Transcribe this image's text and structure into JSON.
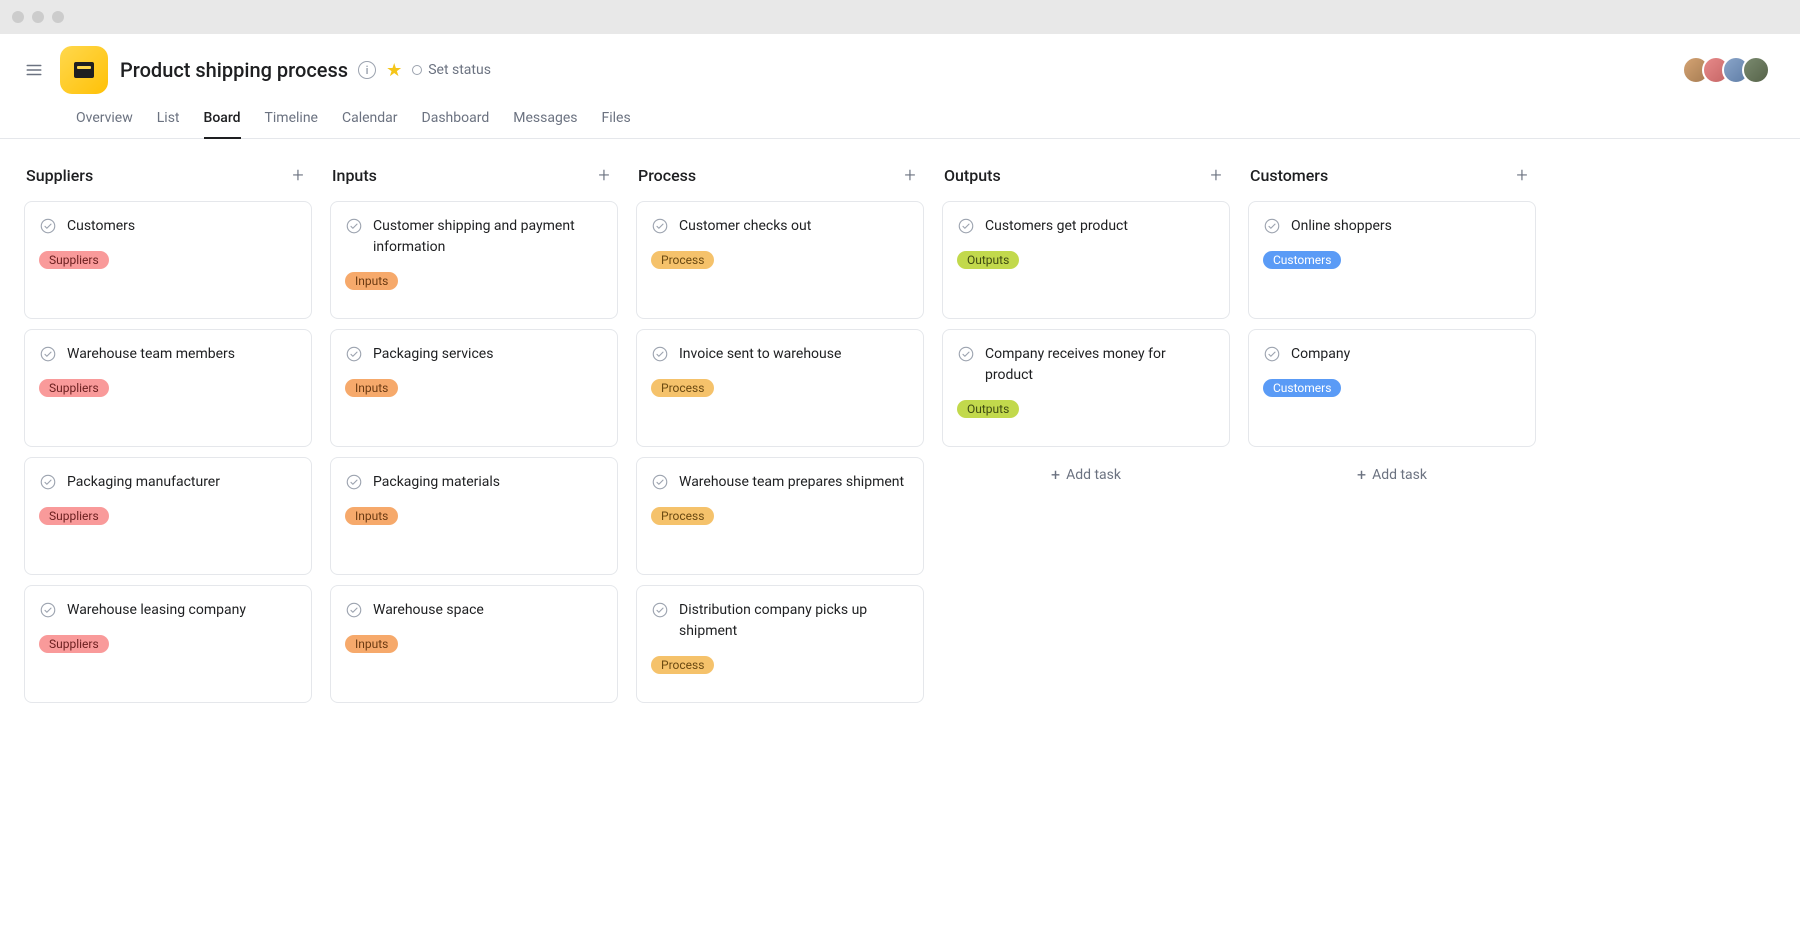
{
  "project": {
    "title": "Product shipping process",
    "status_label": "Set status"
  },
  "tabs": [
    {
      "label": "Overview"
    },
    {
      "label": "List"
    },
    {
      "label": "Board"
    },
    {
      "label": "Timeline"
    },
    {
      "label": "Calendar"
    },
    {
      "label": "Dashboard"
    },
    {
      "label": "Messages"
    },
    {
      "label": "Files"
    }
  ],
  "active_tab": "Board",
  "add_task_label": "Add task",
  "tag_colors": {
    "Suppliers": "#f99a9a",
    "Inputs": "#f6a96b",
    "Process": "#f5c26b",
    "Outputs": "#c2d94c",
    "Customers": "#5a9bf6"
  },
  "columns": [
    {
      "title": "Suppliers",
      "cards": [
        {
          "title": "Customers",
          "tag": "Suppliers"
        },
        {
          "title": "Warehouse team members",
          "tag": "Suppliers"
        },
        {
          "title": "Packaging manufacturer",
          "tag": "Suppliers"
        },
        {
          "title": "Warehouse leasing company",
          "tag": "Suppliers"
        }
      ]
    },
    {
      "title": "Inputs",
      "cards": [
        {
          "title": "Customer shipping and payment information",
          "tag": "Inputs"
        },
        {
          "title": "Packaging services",
          "tag": "Inputs"
        },
        {
          "title": "Packaging materials",
          "tag": "Inputs"
        },
        {
          "title": "Warehouse space",
          "tag": "Inputs"
        }
      ]
    },
    {
      "title": "Process",
      "cards": [
        {
          "title": "Customer checks out",
          "tag": "Process"
        },
        {
          "title": "Invoice sent to warehouse",
          "tag": "Process"
        },
        {
          "title": "Warehouse team prepares shipment",
          "tag": "Process"
        },
        {
          "title": "Distribution company picks up shipment",
          "tag": "Process"
        }
      ]
    },
    {
      "title": "Outputs",
      "cards": [
        {
          "title": "Customers get product",
          "tag": "Outputs"
        },
        {
          "title": "Company receives money for product",
          "tag": "Outputs"
        }
      ],
      "show_add_task": true
    },
    {
      "title": "Customers",
      "cards": [
        {
          "title": "Online shoppers",
          "tag": "Customers"
        },
        {
          "title": "Company",
          "tag": "Customers"
        }
      ],
      "show_add_task": true
    }
  ]
}
